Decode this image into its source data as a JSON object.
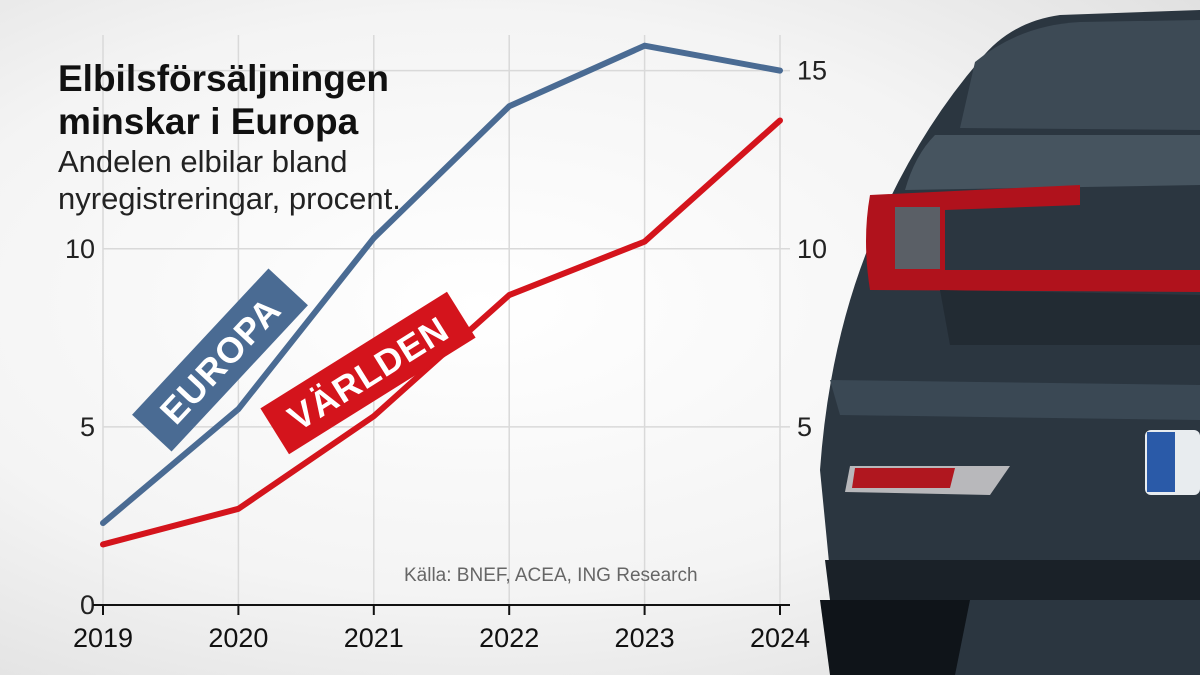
{
  "title": "Elbilsförsäljningen minskar i Europa",
  "subtitle": "Andelen elbilar bland nyregistreringar, procent.",
  "source": "Källa: BNEF, ACEA, ING Research",
  "colors": {
    "europa": "#4a6b93",
    "varlden": "#d4141c"
  },
  "chart_data": {
    "type": "line",
    "title": "Elbilsförsäljningen minskar i Europa",
    "subtitle": "Andelen elbilar bland nyregistreringar, procent.",
    "x": [
      "2019",
      "2020",
      "2021",
      "2022",
      "2023",
      "2024"
    ],
    "series": [
      {
        "name": "EUROPA",
        "values": [
          2.3,
          5.5,
          10.3,
          14.0,
          15.7,
          15.0
        ]
      },
      {
        "name": "VÄRLDEN",
        "values": [
          1.7,
          2.7,
          5.3,
          8.7,
          10.2,
          13.6
        ]
      }
    ],
    "ylim": [
      0,
      16
    ],
    "yticks": [
      0,
      5,
      10,
      15
    ],
    "grid": true
  }
}
